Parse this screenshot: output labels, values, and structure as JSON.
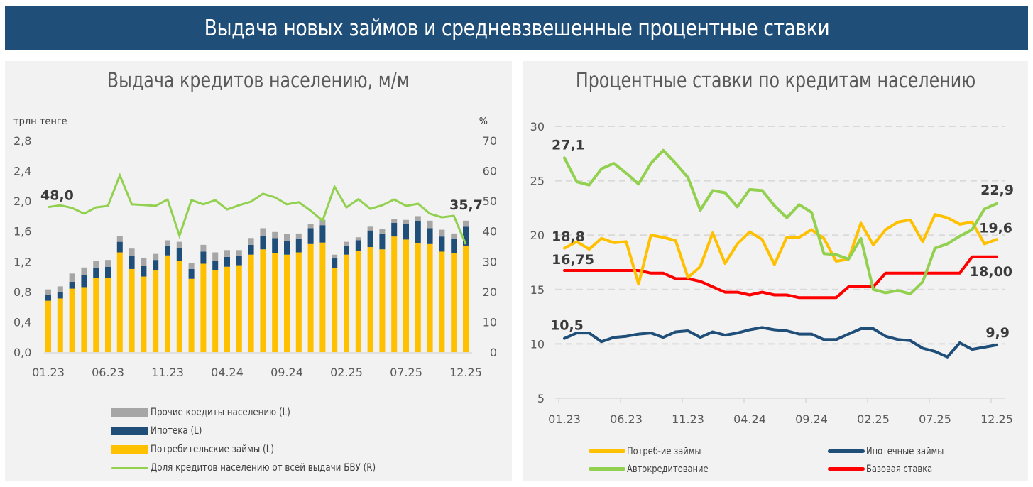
{
  "header": {
    "title": "Выдача новых займов и средневзвешенные процентные ставки"
  },
  "colors": {
    "banner": "#1f4e79",
    "panel_bg": "#f2f2f2",
    "other": "#a6a6a6",
    "mortgage": "#1f4e79",
    "consumer": "#ffc000",
    "share": "#92d050",
    "auto": "#92d050",
    "base": "#ff0000"
  },
  "chart_data": [
    {
      "type": "bar",
      "stacked": true,
      "title": "Выдача кредитов населению, м/м",
      "ylabel": "трлн тенге",
      "y2label": "%",
      "ylim": [
        0,
        2.8
      ],
      "yticks": [
        "0,0",
        "0,4",
        "0,8",
        "1,2",
        "1,6",
        "2,0",
        "2,4",
        "2,8"
      ],
      "y2lim": [
        0,
        70
      ],
      "y2ticks": [
        "0",
        "10",
        "20",
        "30",
        "40",
        "50",
        "60",
        "70"
      ],
      "xtick_labels": [
        "01.23",
        "06.23",
        "11.23",
        "04.24",
        "09.24",
        "02.25",
        "07.25",
        "12.25"
      ],
      "categories": [
        "01.23",
        "02.23",
        "03.23",
        "04.23",
        "05.23",
        "06.23",
        "07.23",
        "08.23",
        "09.23",
        "10.23",
        "11.23",
        "12.23",
        "01.24",
        "02.24",
        "03.24",
        "04.24",
        "05.24",
        "06.24",
        "07.24",
        "08.24",
        "09.24",
        "10.24",
        "11.24",
        "12.24",
        "01.25",
        "02.25",
        "03.25",
        "04.25",
        "05.25",
        "06.25",
        "07.25",
        "08.25",
        "09.25",
        "10.25",
        "11.25",
        "12.25"
      ],
      "series": [
        {
          "name": "Потребительские займы (L)",
          "axis": "left",
          "values": [
            0.68,
            0.71,
            0.84,
            0.86,
            0.98,
            0.98,
            1.32,
            1.1,
            1.0,
            1.08,
            1.28,
            1.21,
            0.97,
            1.17,
            1.09,
            1.13,
            1.15,
            1.29,
            1.36,
            1.31,
            1.29,
            1.32,
            1.43,
            1.45,
            1.11,
            1.29,
            1.34,
            1.39,
            1.36,
            1.53,
            1.49,
            1.44,
            1.43,
            1.33,
            1.31,
            1.41
          ]
        },
        {
          "name": "Ипотека (L)",
          "axis": "left",
          "values": [
            0.08,
            0.09,
            0.09,
            0.16,
            0.13,
            0.15,
            0.14,
            0.18,
            0.14,
            0.14,
            0.13,
            0.17,
            0.13,
            0.16,
            0.12,
            0.13,
            0.12,
            0.13,
            0.18,
            0.2,
            0.18,
            0.18,
            0.21,
            0.23,
            0.13,
            0.12,
            0.14,
            0.22,
            0.21,
            0.18,
            0.21,
            0.29,
            0.21,
            0.2,
            0.19,
            0.25
          ]
        },
        {
          "name": "Прочие кредиты населению (L)",
          "axis": "left",
          "values": [
            0.07,
            0.07,
            0.11,
            0.1,
            0.1,
            0.09,
            0.08,
            0.09,
            0.11,
            0.08,
            0.07,
            0.08,
            0.08,
            0.09,
            0.11,
            0.09,
            0.08,
            0.09,
            0.1,
            0.08,
            0.09,
            0.07,
            0.06,
            0.07,
            0.05,
            0.05,
            0.04,
            0.05,
            0.06,
            0.05,
            0.05,
            0.07,
            0.1,
            0.09,
            0.07,
            0.08
          ]
        },
        {
          "name": "Доля кредитов населению от всей выдачи БВУ (R)",
          "axis": "right",
          "type": "line",
          "values": [
            48.0,
            48.6,
            47.7,
            45.8,
            47.9,
            48.4,
            58.5,
            48.9,
            48.7,
            48.4,
            50.5,
            38.5,
            50.3,
            48.9,
            50.3,
            47.2,
            48.6,
            49.8,
            52.4,
            51.2,
            48.9,
            49.6,
            46.8,
            43.5,
            54.7,
            47.9,
            50.6,
            47.4,
            48.6,
            50.5,
            48.4,
            49.1,
            45.8,
            44.6,
            45.1,
            35.7
          ]
        }
      ],
      "annotations": [
        {
          "text": "48,0",
          "series": 3,
          "index": 0
        },
        {
          "text": "35,7",
          "series": 3,
          "index": 35
        }
      ],
      "legend": [
        "Прочие кредиты населению (L)",
        "Ипотека (L)",
        "Потребительские займы (L)",
        "Доля кредитов населению от всей выдачи БВУ (R)"
      ],
      "legend_position": "bottom",
      "grid": false
    },
    {
      "type": "line",
      "title": "Процентные ставки по кредитам населению",
      "ylim": [
        5,
        30
      ],
      "yticks": [
        "5",
        "10",
        "15",
        "20",
        "25",
        "30"
      ],
      "xtick_labels": [
        "01.23",
        "06.23",
        "11.23",
        "04.24",
        "09.24",
        "02.25",
        "07.25",
        "12.25"
      ],
      "categories": [
        "01.23",
        "02.23",
        "03.23",
        "04.23",
        "05.23",
        "06.23",
        "07.23",
        "08.23",
        "09.23",
        "10.23",
        "11.23",
        "12.23",
        "01.24",
        "02.24",
        "03.24",
        "04.24",
        "05.24",
        "06.24",
        "07.24",
        "08.24",
        "09.24",
        "10.24",
        "11.24",
        "12.24",
        "01.25",
        "02.25",
        "03.25",
        "04.25",
        "05.25",
        "06.25",
        "07.25",
        "08.25",
        "09.25",
        "10.25",
        "11.25",
        "12.25"
      ],
      "series": [
        {
          "name": "Потреб-ие займы",
          "values": [
            18.8,
            19.4,
            18.7,
            19.7,
            19.3,
            19.4,
            15.5,
            20.0,
            19.8,
            19.5,
            16.1,
            17.1,
            20.2,
            17.4,
            19.2,
            20.3,
            19.6,
            17.3,
            19.8,
            19.8,
            20.5,
            19.7,
            17.6,
            17.8,
            21.1,
            19.1,
            20.5,
            21.2,
            21.4,
            19.4,
            21.9,
            21.6,
            21.0,
            21.2,
            19.2,
            19.6
          ]
        },
        {
          "name": "Ипотечные займы",
          "values": [
            10.5,
            11.0,
            11.0,
            10.2,
            10.6,
            10.7,
            10.9,
            11.0,
            10.6,
            11.1,
            11.2,
            10.6,
            11.1,
            10.8,
            11.0,
            11.3,
            11.5,
            11.3,
            11.2,
            10.9,
            10.9,
            10.4,
            10.4,
            10.9,
            11.4,
            11.4,
            10.7,
            10.4,
            10.3,
            9.6,
            9.3,
            8.8,
            10.1,
            9.5,
            9.7,
            9.9
          ]
        },
        {
          "name": "Автокредитование",
          "values": [
            27.1,
            24.9,
            24.6,
            26.1,
            26.6,
            25.7,
            24.7,
            26.6,
            27.8,
            26.6,
            25.3,
            22.3,
            24.1,
            23.9,
            22.6,
            24.2,
            24.1,
            22.7,
            21.6,
            22.8,
            22.1,
            18.3,
            18.2,
            17.8,
            19.7,
            15.0,
            14.7,
            14.9,
            14.6,
            15.7,
            18.8,
            19.2,
            19.9,
            20.5,
            22.4,
            22.9
          ]
        },
        {
          "name": "Базовая ставка",
          "values": [
            16.75,
            16.75,
            16.75,
            16.75,
            16.75,
            16.75,
            16.75,
            16.5,
            16.5,
            16.0,
            16.0,
            15.75,
            15.25,
            14.75,
            14.75,
            14.5,
            14.75,
            14.5,
            14.5,
            14.25,
            14.25,
            14.25,
            14.25,
            15.25,
            15.25,
            15.25,
            16.5,
            16.5,
            16.5,
            16.5,
            16.5,
            16.5,
            16.5,
            18.0,
            18.0,
            18.0
          ]
        }
      ],
      "annotations": [
        {
          "text": "27,1",
          "series": 2,
          "index": 0
        },
        {
          "text": "18,8",
          "series": 0,
          "index": 0
        },
        {
          "text": "16,75",
          "series": 3,
          "index": 0
        },
        {
          "text": "10,5",
          "series": 1,
          "index": 0
        },
        {
          "text": "22,9",
          "series": 2,
          "index": 35
        },
        {
          "text": "19,6",
          "series": 0,
          "index": 35
        },
        {
          "text": "18,00",
          "series": 3,
          "index": 35
        },
        {
          "text": "9,9",
          "series": 1,
          "index": 35
        }
      ],
      "legend": [
        "Потреб-ие займы",
        "Ипотечные займы",
        "Автокредитование",
        "Базовая ставка"
      ],
      "legend_position": "bottom",
      "grid": "horizontal-dashed"
    }
  ]
}
